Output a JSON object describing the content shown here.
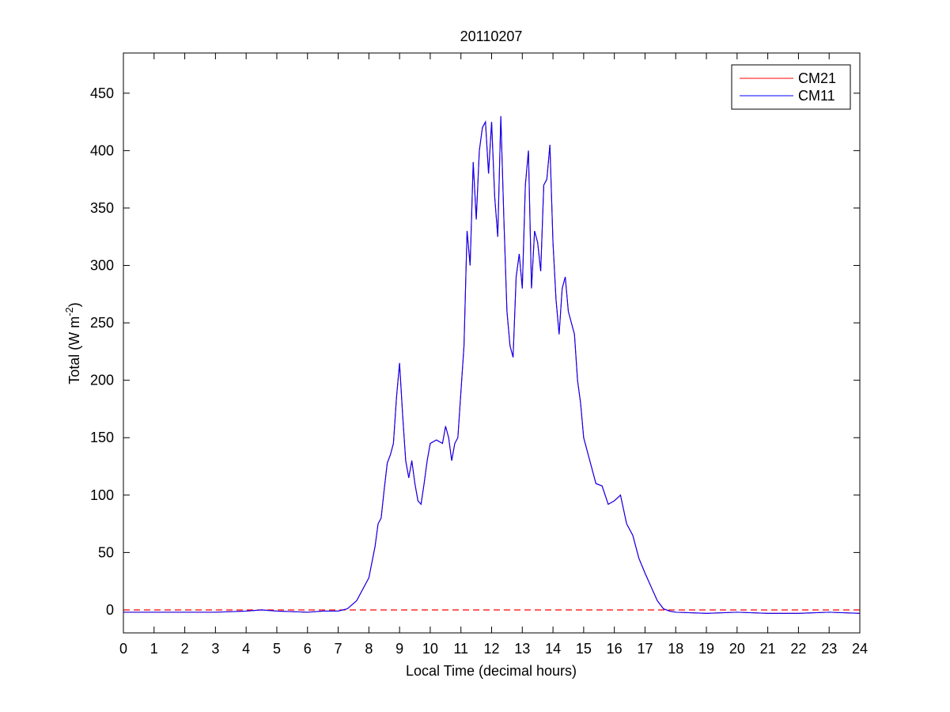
{
  "chart_data": {
    "type": "line",
    "title": "20110207",
    "xlabel": "Local Time (decimal hours)",
    "ylabel": {
      "text": "Total (W m",
      "superscript": "-2",
      "suffix": ")"
    },
    "xlim": [
      0,
      24
    ],
    "xticks": [
      0,
      1,
      2,
      3,
      4,
      5,
      6,
      7,
      8,
      9,
      10,
      11,
      12,
      13,
      14,
      15,
      16,
      17,
      18,
      19,
      20,
      21,
      22,
      23,
      24
    ],
    "ylim": [
      -20,
      485
    ],
    "yticks": [
      0,
      50,
      100,
      150,
      200,
      250,
      300,
      350,
      400,
      450
    ],
    "legend": "upper right",
    "reference_line": {
      "y": 0,
      "color": "#ff0000",
      "style": "dashed"
    },
    "x": [
      0,
      1,
      2,
      3,
      4,
      4.5,
      5,
      6,
      6.5,
      7,
      7.3,
      7.6,
      7.8,
      8.0,
      8.2,
      8.3,
      8.4,
      8.5,
      8.6,
      8.7,
      8.8,
      8.9,
      9.0,
      9.1,
      9.2,
      9.3,
      9.4,
      9.5,
      9.6,
      9.7,
      9.8,
      9.9,
      10.0,
      10.2,
      10.4,
      10.5,
      10.6,
      10.7,
      10.8,
      10.9,
      11.0,
      11.1,
      11.2,
      11.3,
      11.4,
      11.5,
      11.6,
      11.7,
      11.8,
      11.9,
      12.0,
      12.1,
      12.2,
      12.3,
      12.4,
      12.5,
      12.6,
      12.7,
      12.8,
      12.9,
      13.0,
      13.1,
      13.2,
      13.3,
      13.4,
      13.5,
      13.6,
      13.7,
      13.8,
      13.9,
      14.0,
      14.1,
      14.2,
      14.3,
      14.4,
      14.5,
      14.6,
      14.7,
      14.8,
      14.9,
      15.0,
      15.2,
      15.4,
      15.6,
      15.8,
      16.0,
      16.2,
      16.4,
      16.6,
      16.8,
      17.0,
      17.2,
      17.4,
      17.6,
      17.8,
      18,
      19,
      20,
      21,
      22,
      23,
      24
    ],
    "series": [
      {
        "name": "CM21",
        "color": "#ff0000",
        "values": [
          -2,
          -2,
          -2,
          -2,
          -1,
          0,
          -1,
          -2,
          -1,
          -1,
          1,
          8,
          18,
          28,
          55,
          75,
          80,
          105,
          128,
          135,
          145,
          185,
          215,
          170,
          130,
          115,
          130,
          110,
          95,
          92,
          110,
          130,
          145,
          148,
          145,
          160,
          150,
          130,
          145,
          150,
          190,
          230,
          330,
          300,
          390,
          340,
          400,
          420,
          425,
          380,
          425,
          360,
          325,
          430,
          340,
          260,
          230,
          220,
          290,
          310,
          280,
          370,
          400,
          280,
          330,
          320,
          295,
          370,
          375,
          405,
          320,
          270,
          240,
          280,
          290,
          260,
          250,
          240,
          200,
          180,
          150,
          130,
          110,
          108,
          92,
          95,
          100,
          75,
          65,
          45,
          32,
          20,
          8,
          1,
          -1,
          -2,
          -3,
          -2,
          -3,
          -3,
          -2,
          -3
        ]
      },
      {
        "name": "CM11",
        "color": "#0000ff",
        "values": [
          -2,
          -2,
          -2,
          -2,
          -1,
          0,
          -1,
          -2,
          -1,
          -1,
          1,
          8,
          18,
          28,
          55,
          75,
          80,
          105,
          128,
          135,
          145,
          185,
          215,
          170,
          130,
          115,
          130,
          110,
          95,
          92,
          110,
          130,
          145,
          148,
          145,
          160,
          150,
          130,
          145,
          150,
          190,
          230,
          330,
          300,
          390,
          340,
          400,
          420,
          425,
          380,
          425,
          360,
          325,
          430,
          340,
          260,
          230,
          220,
          290,
          310,
          280,
          370,
          400,
          280,
          330,
          320,
          295,
          370,
          375,
          405,
          320,
          270,
          240,
          280,
          290,
          260,
          250,
          240,
          200,
          180,
          150,
          130,
          110,
          108,
          92,
          95,
          100,
          75,
          65,
          45,
          32,
          20,
          8,
          1,
          -1,
          -2,
          -3,
          -2,
          -3,
          -3,
          -2,
          -3
        ]
      }
    ]
  }
}
